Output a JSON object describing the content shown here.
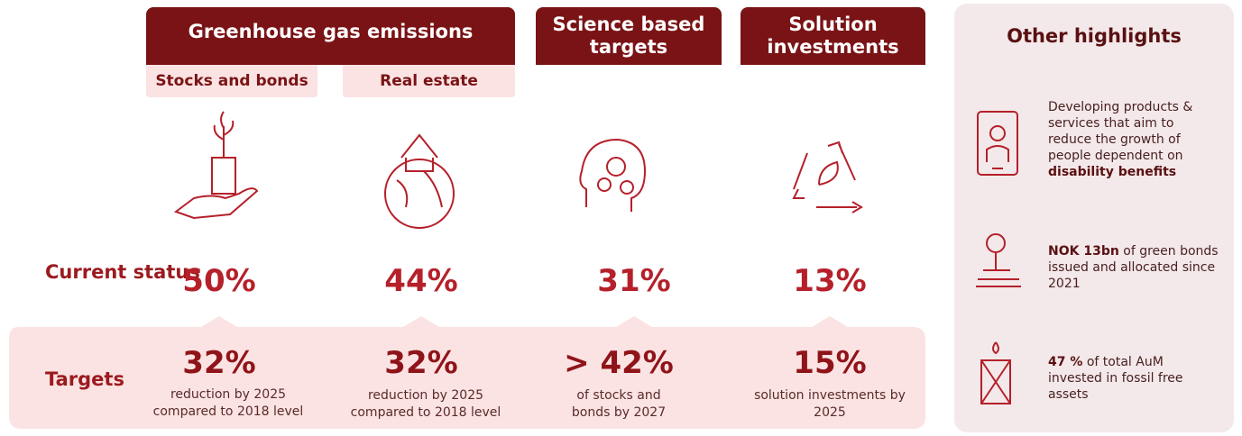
{
  "headers": [
    {
      "title": "Greenhouse gas emissions"
    },
    {
      "title": "Science based targets"
    },
    {
      "title": "Solution investments"
    }
  ],
  "subheaders": [
    "Stocks and bonds",
    "Real estate"
  ],
  "row_labels": {
    "current": "Current status",
    "targets": "Targets"
  },
  "columns": [
    {
      "current": "50%",
      "target": "32%",
      "target_note": "reduction by 2025 compared to 2018 level"
    },
    {
      "current": "44%",
      "target": "32%",
      "target_note": "reduction by 2025 compared to 2018 level"
    },
    {
      "current": "31%",
      "target": "> 42%",
      "target_note": "of stocks and bonds by 2027"
    },
    {
      "current": "13%",
      "target": "15%",
      "target_note": "solution investments by 2025"
    }
  ],
  "highlights": {
    "title": "Other highlights",
    "items": [
      {
        "parts": [
          {
            "normal": "Developing products & services that aim to reduce the growth of people dependent on "
          },
          {
            "strong": "disability benefits"
          }
        ]
      },
      {
        "parts": [
          {
            "strong": "NOK 13bn"
          },
          {
            "normal": " of green bonds issued and allocated since 2021"
          }
        ]
      },
      {
        "parts": [
          {
            "strong": "47 %"
          },
          {
            "normal": " of total AuM invested in fossil free assets"
          }
        ]
      }
    ]
  }
}
